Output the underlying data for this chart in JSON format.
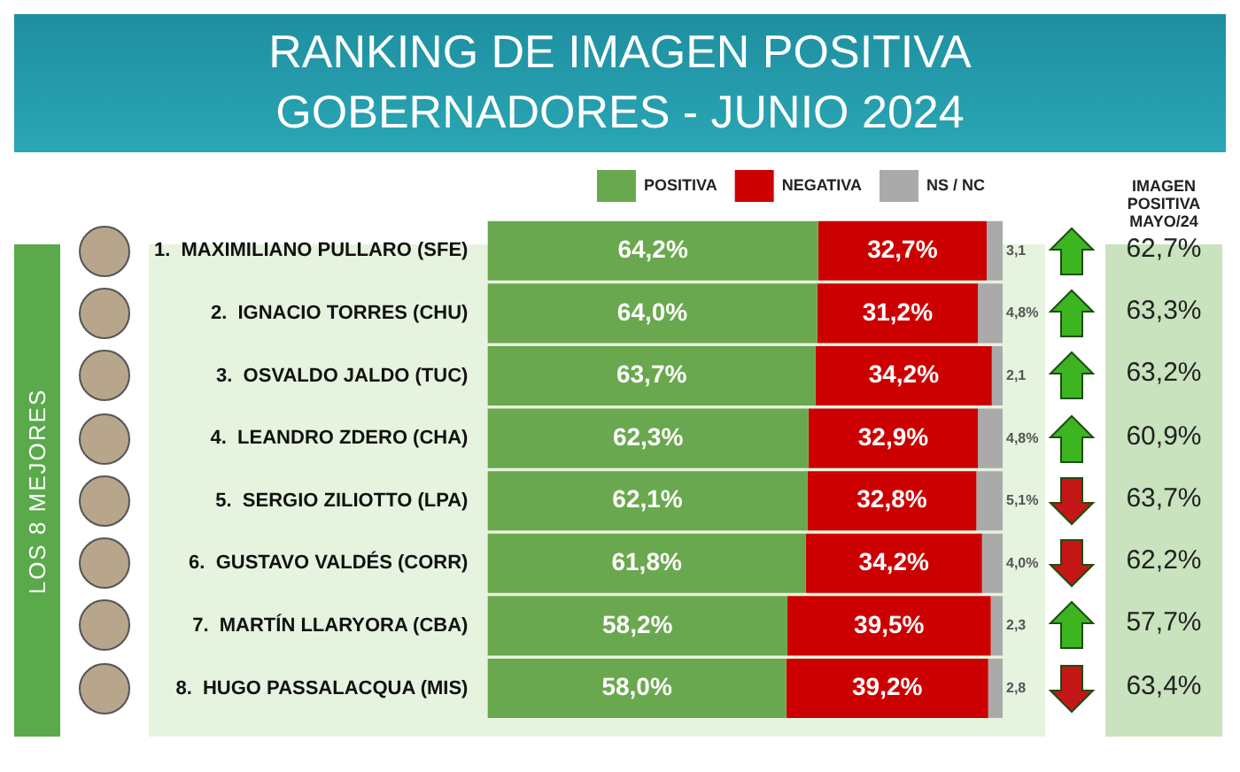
{
  "chart_data": {
    "type": "bar",
    "orientation": "horizontal",
    "stacked": true,
    "title": "RANKING DE IMAGEN POSITIVA",
    "subtitle": "GOBERNADORES - JUNIO 2024",
    "categories": [
      "1.  MAXIMILIANO PULLARO (SFE)",
      "2.  IGNACIO TORRES (CHU)",
      "3.  OSVALDO JALDO (TUC)",
      "4.  LEANDRO ZDERO (CHA)",
      "5.  SERGIO ZILIOTTO (LPA)",
      "6.  GUSTAVO VALDÉS (CORR)",
      "7.  MARTÍN LLARYORA (CBA)",
      "8.  HUGO PASSALACQUA (MIS)"
    ],
    "series": [
      {
        "name": "POSITIVA",
        "color": "#6aa84f",
        "values": [
          64.2,
          64.0,
          63.7,
          62.3,
          62.1,
          61.8,
          58.2,
          58.0
        ],
        "value_labels": [
          "64,2%",
          "64,0%",
          "63,7%",
          "62,3%",
          "62,1%",
          "61,8%",
          "58,2%",
          "58,0%"
        ]
      },
      {
        "name": "NEGATIVA",
        "color": "#cc0000",
        "values": [
          32.7,
          31.2,
          34.2,
          32.9,
          32.8,
          34.2,
          39.5,
          39.2
        ],
        "value_labels": [
          "32,7%",
          "31,2%",
          "34,2%",
          "32,9%",
          "32,8%",
          "34,2%",
          "39,5%",
          "39,2%"
        ]
      },
      {
        "name": "NS / NC",
        "color": "#aaaaaa",
        "values": [
          3.1,
          4.8,
          2.1,
          4.8,
          5.1,
          4.0,
          2.3,
          2.8
        ],
        "value_labels": [
          "3,1",
          "4,8%",
          "2,1",
          "4,8%",
          "5,1%",
          "4,0%",
          "2,3",
          "2,8"
        ]
      }
    ],
    "xlim": [
      0,
      100
    ],
    "tick_labels": "y",
    "grid": false,
    "legend": "top",
    "annotations": [
      "LOS 8 MEJORES",
      "IMAGEN POSITIVA MAYO/24",
      "62,7%",
      "63,3%",
      "63,2%",
      "60,9%",
      "63,7%",
      "62,2%",
      "57,7%",
      "63,4%"
    ]
  }
}
